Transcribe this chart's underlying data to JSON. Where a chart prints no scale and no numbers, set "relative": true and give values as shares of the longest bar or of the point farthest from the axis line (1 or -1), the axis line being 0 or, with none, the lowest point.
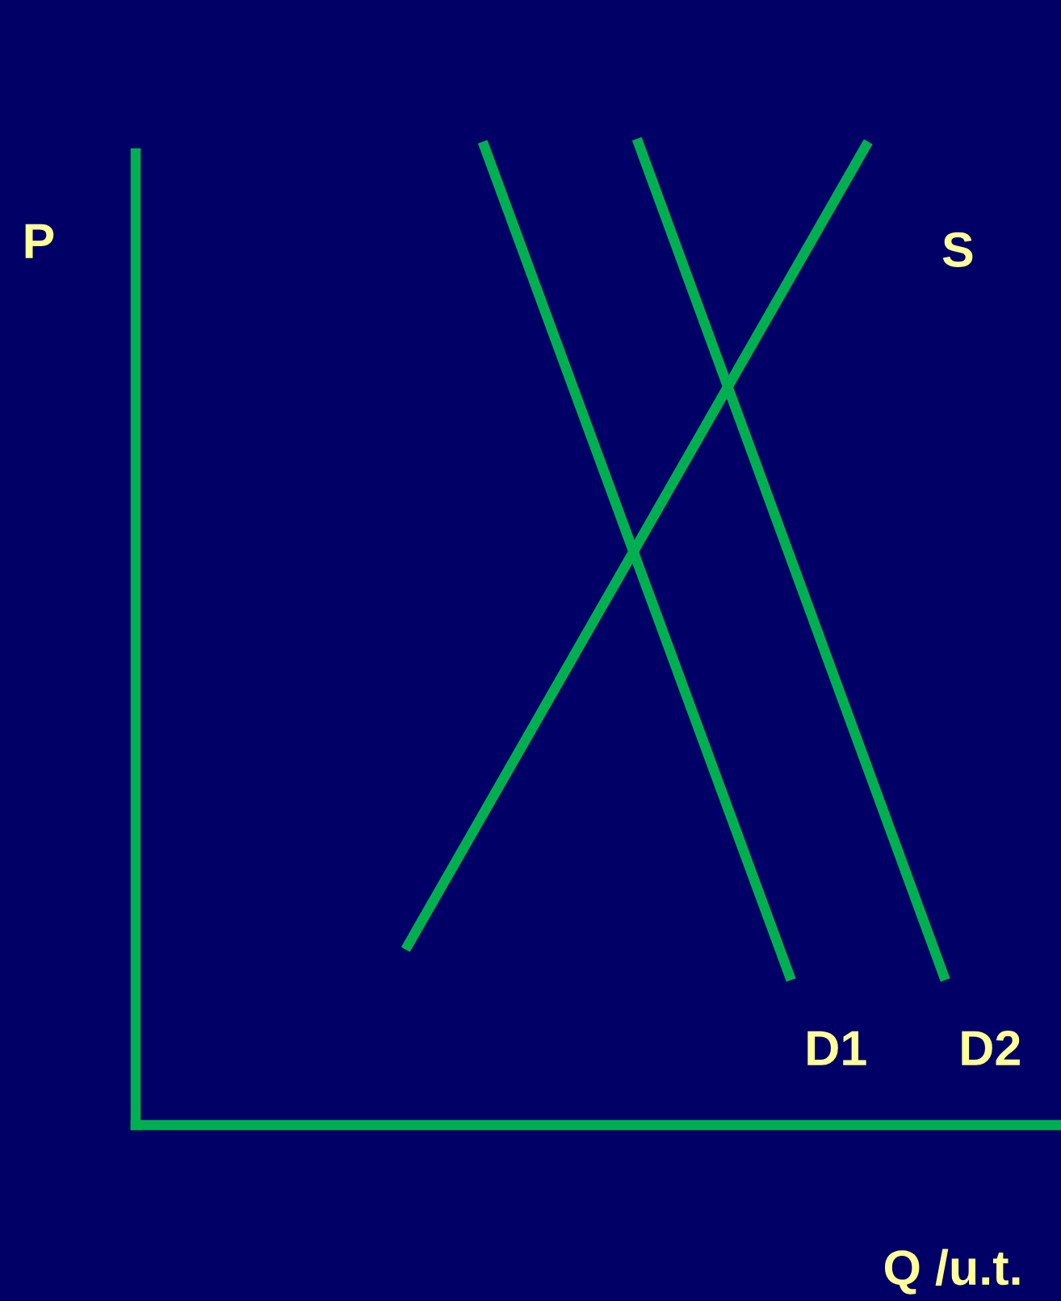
{
  "chart_data": {
    "type": "line",
    "relative": true,
    "xlabel": "Q /u.t.",
    "ylabel": "P",
    "marker": "none",
    "line_style": "solid",
    "categories": [
      null,
      null,
      null,
      null,
      null,
      null,
      null,
      null,
      null,
      null,
      null,
      null
    ],
    "series": [
      {
        "name": "S",
        "color": "#00b050",
        "values": [
          null,
          null,
          null,
          0.178,
          null,
          null,
          null,
          null,
          null,
          0.997,
          null,
          null
        ]
      },
      {
        "name": "D1",
        "color": "#00b050",
        "values": [
          null,
          null,
          null,
          null,
          0.997,
          null,
          null,
          null,
          0.147,
          null,
          null,
          null
        ]
      },
      {
        "name": "D2",
        "color": "#00b050",
        "values": [
          null,
          null,
          null,
          null,
          null,
          null,
          1.0,
          null,
          null,
          null,
          0.147,
          null
        ]
      }
    ]
  }
}
